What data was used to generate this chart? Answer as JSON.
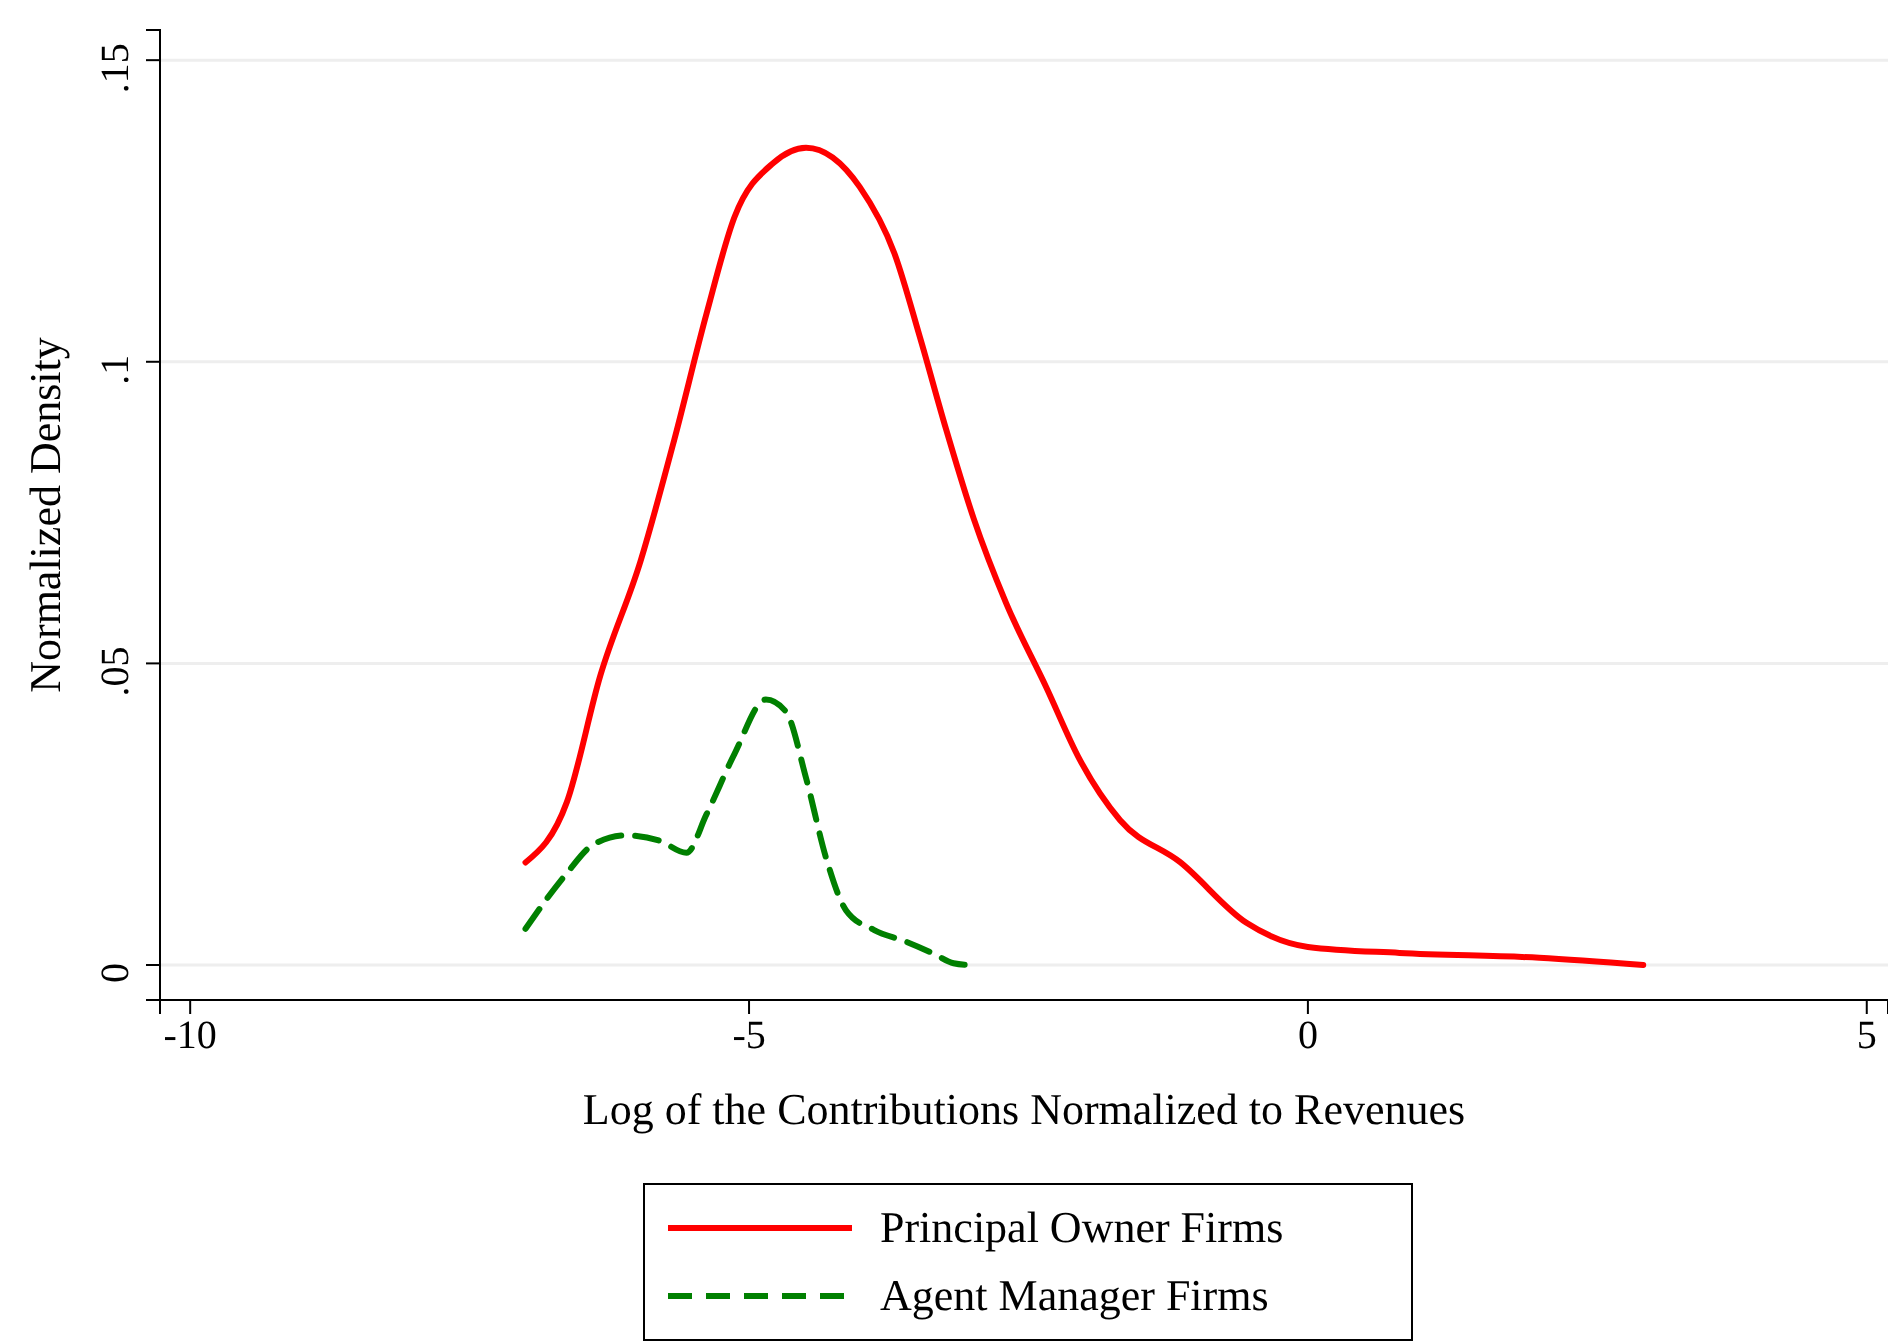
{
  "chart_data": {
    "type": "line",
    "xlabel": "Log of the Contributions Normalized to Revenues",
    "ylabel": "Normalized Density",
    "xlim": [
      -10.27,
      5.19
    ],
    "xticks": [
      -10,
      -5,
      0,
      5
    ],
    "ylim": [
      -0.0058,
      0.155
    ],
    "yticks": [
      {
        "value": 0,
        "label": "0"
      },
      {
        "value": 0.05,
        "label": ".05"
      },
      {
        "value": 0.1,
        "label": ".1"
      },
      {
        "value": 0.15,
        "label": ".15"
      }
    ],
    "grid": "y",
    "legend": "bottom",
    "series": [
      {
        "name": "Principal Owner Firms",
        "color": "#ff0000",
        "line_style": "solid",
        "x": [
          -7.0,
          -6.63,
          -6.33,
          -5.97,
          -5.67,
          -5.38,
          -5.13,
          -4.78,
          -4.49,
          -4.01,
          -3.7,
          -3.47,
          -3.24,
          -2.99,
          -2.7,
          -2.34,
          -2.04,
          -1.68,
          -1.14,
          -0.55,
          0,
          0.82,
          2.07,
          3.0
        ],
        "values": [
          0.017,
          0.027,
          0.048,
          0.067,
          0.087,
          0.108,
          0.124,
          0.133,
          0.1355,
          0.129,
          0.118,
          0.104,
          0.089,
          0.074,
          0.06,
          0.046,
          0.034,
          0.024,
          0.017,
          0.007,
          0.003,
          0.002,
          0.0012,
          0
        ]
      },
      {
        "name": "Agent Manager Firms",
        "color": "#008000",
        "line_style": "dashed",
        "x": [
          -7.0,
          -6.64,
          -6.39,
          -6.1,
          -5.8,
          -5.56,
          -5.38,
          -5.13,
          -4.85,
          -4.67,
          -4.49,
          -4.31,
          -4.13,
          -3.88,
          -3.6,
          -3.35,
          -3.17,
          -3.02
        ],
        "values": [
          0.006,
          0.015,
          0.02,
          0.0215,
          0.0206,
          0.0186,
          0.025,
          0.035,
          0.044,
          0.042,
          0.031,
          0.0177,
          0.009,
          0.0058,
          0.0039,
          0.0019,
          0.0003,
          0
        ]
      }
    ]
  }
}
